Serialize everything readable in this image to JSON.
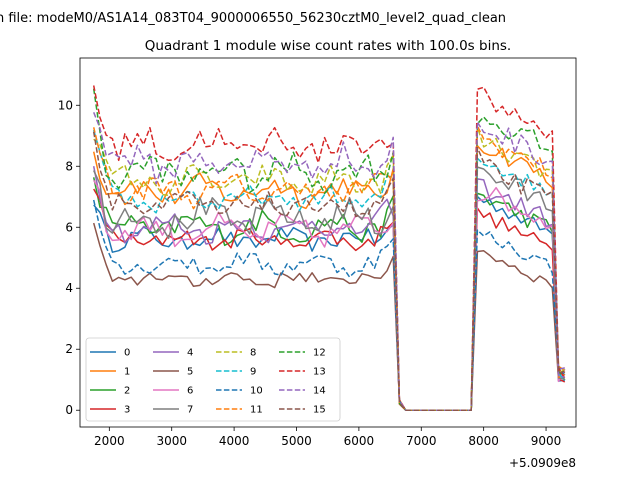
{
  "figure": {
    "suptitle": "n file: modeM0/AS1A14_083T04_9000006550_56230cztM0_level2_quad_clean",
    "offset_text": "+5.0909e8"
  },
  "chart_data": {
    "type": "line",
    "title": "Quadrant 1 module wise count rates with 100.0s bins.",
    "xlabel": "",
    "ylabel": "",
    "x_offset": 509090000,
    "xlim": [
      1530,
      9480
    ],
    "ylim": [
      -0.55,
      11.55
    ],
    "xticks": [
      2000,
      3000,
      4000,
      5000,
      6000,
      7000,
      8000,
      9000
    ],
    "yticks": [
      0,
      2,
      4,
      6,
      8,
      10
    ],
    "grid": false,
    "legend_position": "lower-left",
    "legend_columns": 4,
    "x_segments": [
      [
        1750,
        6550,
        100
      ],
      [
        6650,
        7750,
        100
      ],
      [
        7800,
        9300,
        100
      ]
    ],
    "series": [
      {
        "name": "0",
        "color": "#1f77b4",
        "style": "solid",
        "level": 5.6,
        "jitter": 0.3,
        "high": 6.9
      },
      {
        "name": "1",
        "color": "#ff7f0e",
        "style": "solid",
        "level": 7.2,
        "jitter": 0.4,
        "high": 8.7
      },
      {
        "name": "2",
        "color": "#2ca02c",
        "style": "solid",
        "level": 6.0,
        "jitter": 0.4,
        "high": 7.0
      },
      {
        "name": "3",
        "color": "#d62728",
        "style": "solid",
        "level": 5.6,
        "jitter": 0.3,
        "high": 6.4
      },
      {
        "name": "4",
        "color": "#9467bd",
        "style": "solid",
        "level": 6.0,
        "jitter": 0.4,
        "high": 7.3
      },
      {
        "name": "5",
        "color": "#8c564b",
        "style": "solid",
        "level": 4.3,
        "jitter": 0.25,
        "high": 5.2
      },
      {
        "name": "6",
        "color": "#e377c2",
        "style": "solid",
        "level": 5.9,
        "jitter": 0.4,
        "high": 7.2
      },
      {
        "name": "7",
        "color": "#7f7f7f",
        "style": "solid",
        "level": 6.3,
        "jitter": 0.5,
        "high": 7.8
      },
      {
        "name": "8",
        "color": "#bcbd22",
        "style": "dashed",
        "level": 7.5,
        "jitter": 0.4,
        "high": 8.8
      },
      {
        "name": "9",
        "color": "#17becf",
        "style": "dashed",
        "level": 6.9,
        "jitter": 0.35,
        "high": 8.2
      },
      {
        "name": "10",
        "color": "#1f77b4",
        "style": "dashed",
        "level": 4.8,
        "jitter": 0.3,
        "high": 5.8
      },
      {
        "name": "11",
        "color": "#ff7f0e",
        "style": "dashed",
        "level": 7.2,
        "jitter": 0.4,
        "high": 8.9
      },
      {
        "name": "12",
        "color": "#2ca02c",
        "style": "dashed",
        "level": 7.8,
        "jitter": 0.5,
        "high": 9.6
      },
      {
        "name": "13",
        "color": "#d62728",
        "style": "dashed",
        "level": 8.7,
        "jitter": 0.5,
        "high": 10.2
      },
      {
        "name": "14",
        "color": "#9467bd",
        "style": "dashed",
        "level": 8.1,
        "jitter": 0.5,
        "high": 9.3
      },
      {
        "name": "15",
        "color": "#8c564b",
        "style": "dashed",
        "level": 6.7,
        "jitter": 0.4,
        "high": 8.0
      }
    ]
  }
}
